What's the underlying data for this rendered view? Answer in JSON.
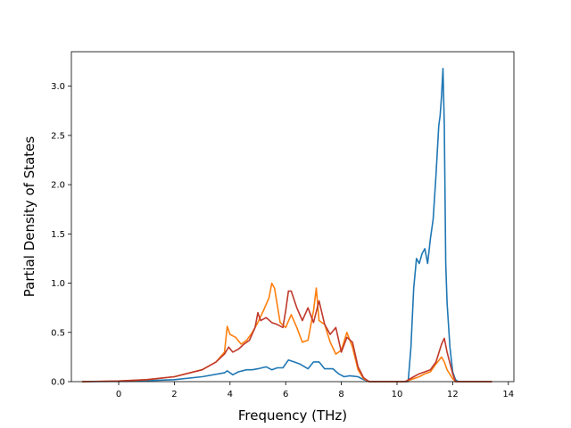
{
  "chart_data": {
    "type": "line",
    "title": "",
    "xlabel": "Frequency (THz)",
    "ylabel": "Partial Density of States",
    "xlim": [
      -1.7,
      14.2
    ],
    "ylim": [
      0.0,
      3.35
    ],
    "xticks": [
      0,
      2,
      4,
      6,
      8,
      10,
      12,
      14
    ],
    "xtick_labels": [
      "0",
      "2",
      "4",
      "6",
      "8",
      "10",
      "12",
      "14"
    ],
    "yticks": [
      0.0,
      0.5,
      1.0,
      1.5,
      2.0,
      2.5,
      3.0
    ],
    "ytick_labels": [
      "0.0",
      "0.5",
      "1.0",
      "1.5",
      "2.0",
      "2.5",
      "3.0"
    ],
    "grid": false,
    "legend": "none",
    "series": [
      {
        "color": "#1f77b4",
        "x": [
          -1.3,
          0.0,
          1.0,
          2.0,
          3.0,
          3.8,
          3.9,
          4.1,
          4.3,
          4.6,
          4.8,
          5.0,
          5.3,
          5.5,
          5.7,
          5.9,
          6.1,
          6.3,
          6.5,
          6.8,
          7.0,
          7.2,
          7.4,
          7.7,
          7.9,
          8.1,
          8.3,
          8.6,
          8.8,
          9.0,
          10.4,
          10.5,
          10.6,
          10.7,
          10.8,
          10.9,
          11.0,
          11.1,
          11.2,
          11.3,
          11.4,
          11.5,
          11.55,
          11.6,
          11.65,
          11.7,
          11.75,
          11.8,
          11.9,
          12.0,
          12.1,
          12.2,
          12.3,
          13.4
        ],
        "y": [
          0.0,
          0.003,
          0.01,
          0.02,
          0.05,
          0.09,
          0.11,
          0.07,
          0.1,
          0.12,
          0.12,
          0.13,
          0.15,
          0.12,
          0.14,
          0.14,
          0.22,
          0.2,
          0.18,
          0.13,
          0.2,
          0.2,
          0.13,
          0.13,
          0.08,
          0.05,
          0.06,
          0.05,
          0.02,
          0.0,
          0.0,
          0.35,
          0.95,
          1.25,
          1.2,
          1.3,
          1.35,
          1.2,
          1.45,
          1.65,
          2.1,
          2.6,
          2.7,
          2.9,
          3.18,
          2.6,
          1.2,
          0.8,
          0.35,
          0.1,
          0.02,
          0.0,
          0.0,
          0.0
        ]
      },
      {
        "color": "#ff7f0e",
        "x": [
          -1.3,
          0.0,
          1.0,
          2.0,
          3.0,
          3.5,
          3.8,
          3.9,
          4.0,
          4.2,
          4.4,
          4.6,
          4.8,
          5.0,
          5.2,
          5.4,
          5.5,
          5.6,
          5.8,
          6.0,
          6.2,
          6.4,
          6.6,
          6.8,
          7.0,
          7.1,
          7.2,
          7.4,
          7.6,
          7.8,
          8.0,
          8.2,
          8.4,
          8.6,
          8.8,
          9.0,
          10.3,
          10.6,
          10.8,
          11.0,
          11.2,
          11.4,
          11.6,
          11.7,
          11.8,
          12.0,
          12.1,
          13.4
        ],
        "y": [
          0.0,
          0.006,
          0.02,
          0.05,
          0.12,
          0.2,
          0.3,
          0.56,
          0.48,
          0.45,
          0.38,
          0.42,
          0.5,
          0.6,
          0.72,
          0.85,
          1.0,
          0.95,
          0.6,
          0.55,
          0.68,
          0.55,
          0.4,
          0.42,
          0.72,
          0.95,
          0.62,
          0.58,
          0.4,
          0.28,
          0.32,
          0.5,
          0.35,
          0.12,
          0.03,
          0.0,
          0.0,
          0.03,
          0.05,
          0.08,
          0.1,
          0.18,
          0.25,
          0.2,
          0.12,
          0.03,
          0.0,
          0.0
        ]
      },
      {
        "color": "#c0392b",
        "x": [
          -1.3,
          0.0,
          1.0,
          2.0,
          3.0,
          3.5,
          3.8,
          3.95,
          4.1,
          4.3,
          4.5,
          4.7,
          4.9,
          5.0,
          5.1,
          5.3,
          5.5,
          5.7,
          5.9,
          6.0,
          6.1,
          6.2,
          6.4,
          6.6,
          6.8,
          7.0,
          7.2,
          7.4,
          7.6,
          7.8,
          8.0,
          8.2,
          8.4,
          8.6,
          8.8,
          9.0,
          10.3,
          10.6,
          10.8,
          11.0,
          11.2,
          11.4,
          11.6,
          11.7,
          11.8,
          12.0,
          12.1,
          13.4
        ],
        "y": [
          0.0,
          0.006,
          0.02,
          0.05,
          0.12,
          0.2,
          0.28,
          0.35,
          0.3,
          0.33,
          0.38,
          0.42,
          0.55,
          0.7,
          0.62,
          0.65,
          0.6,
          0.58,
          0.55,
          0.72,
          0.92,
          0.92,
          0.75,
          0.62,
          0.75,
          0.6,
          0.82,
          0.58,
          0.48,
          0.55,
          0.3,
          0.45,
          0.4,
          0.15,
          0.04,
          0.0,
          0.0,
          0.05,
          0.08,
          0.1,
          0.12,
          0.2,
          0.38,
          0.44,
          0.3,
          0.08,
          0.0,
          0.0
        ]
      }
    ]
  }
}
